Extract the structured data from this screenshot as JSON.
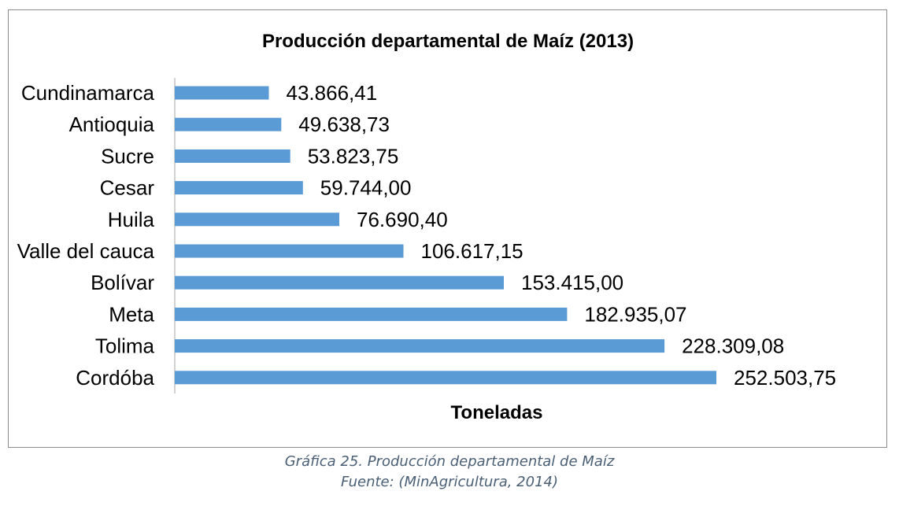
{
  "chart_data": {
    "type": "bar",
    "orientation": "horizontal",
    "title": "Producción departamental de Maíz (2013)",
    "xlabel": "Toneladas",
    "ylabel": "",
    "categories": [
      "Cundinamarca",
      "Antioquia",
      "Sucre",
      "Cesar",
      "Huila",
      "Valle del cauca",
      "Bolívar",
      "Meta",
      "Tolima",
      "Cordóba"
    ],
    "values": [
      43866.41,
      49638.73,
      53823.75,
      59744.0,
      76690.4,
      106617.15,
      153415.0,
      182935.07,
      228309.08,
      252503.75
    ],
    "value_labels": [
      "43.866,41",
      "49.638,73",
      "53.823,75",
      "59.744,00",
      "76.690,40",
      "106.617,15",
      "153.415,00",
      "182.935,07",
      "228.309,08",
      "252.503,75"
    ],
    "xlim": [
      0,
      252503.75
    ],
    "grid": false,
    "legend": "none",
    "bar_color": "#5b9bd5"
  },
  "caption": {
    "line1": "Gráfica 25. Producción departamental de Maíz",
    "line2": "Fuente: (MinAgricultura, 2014)"
  }
}
